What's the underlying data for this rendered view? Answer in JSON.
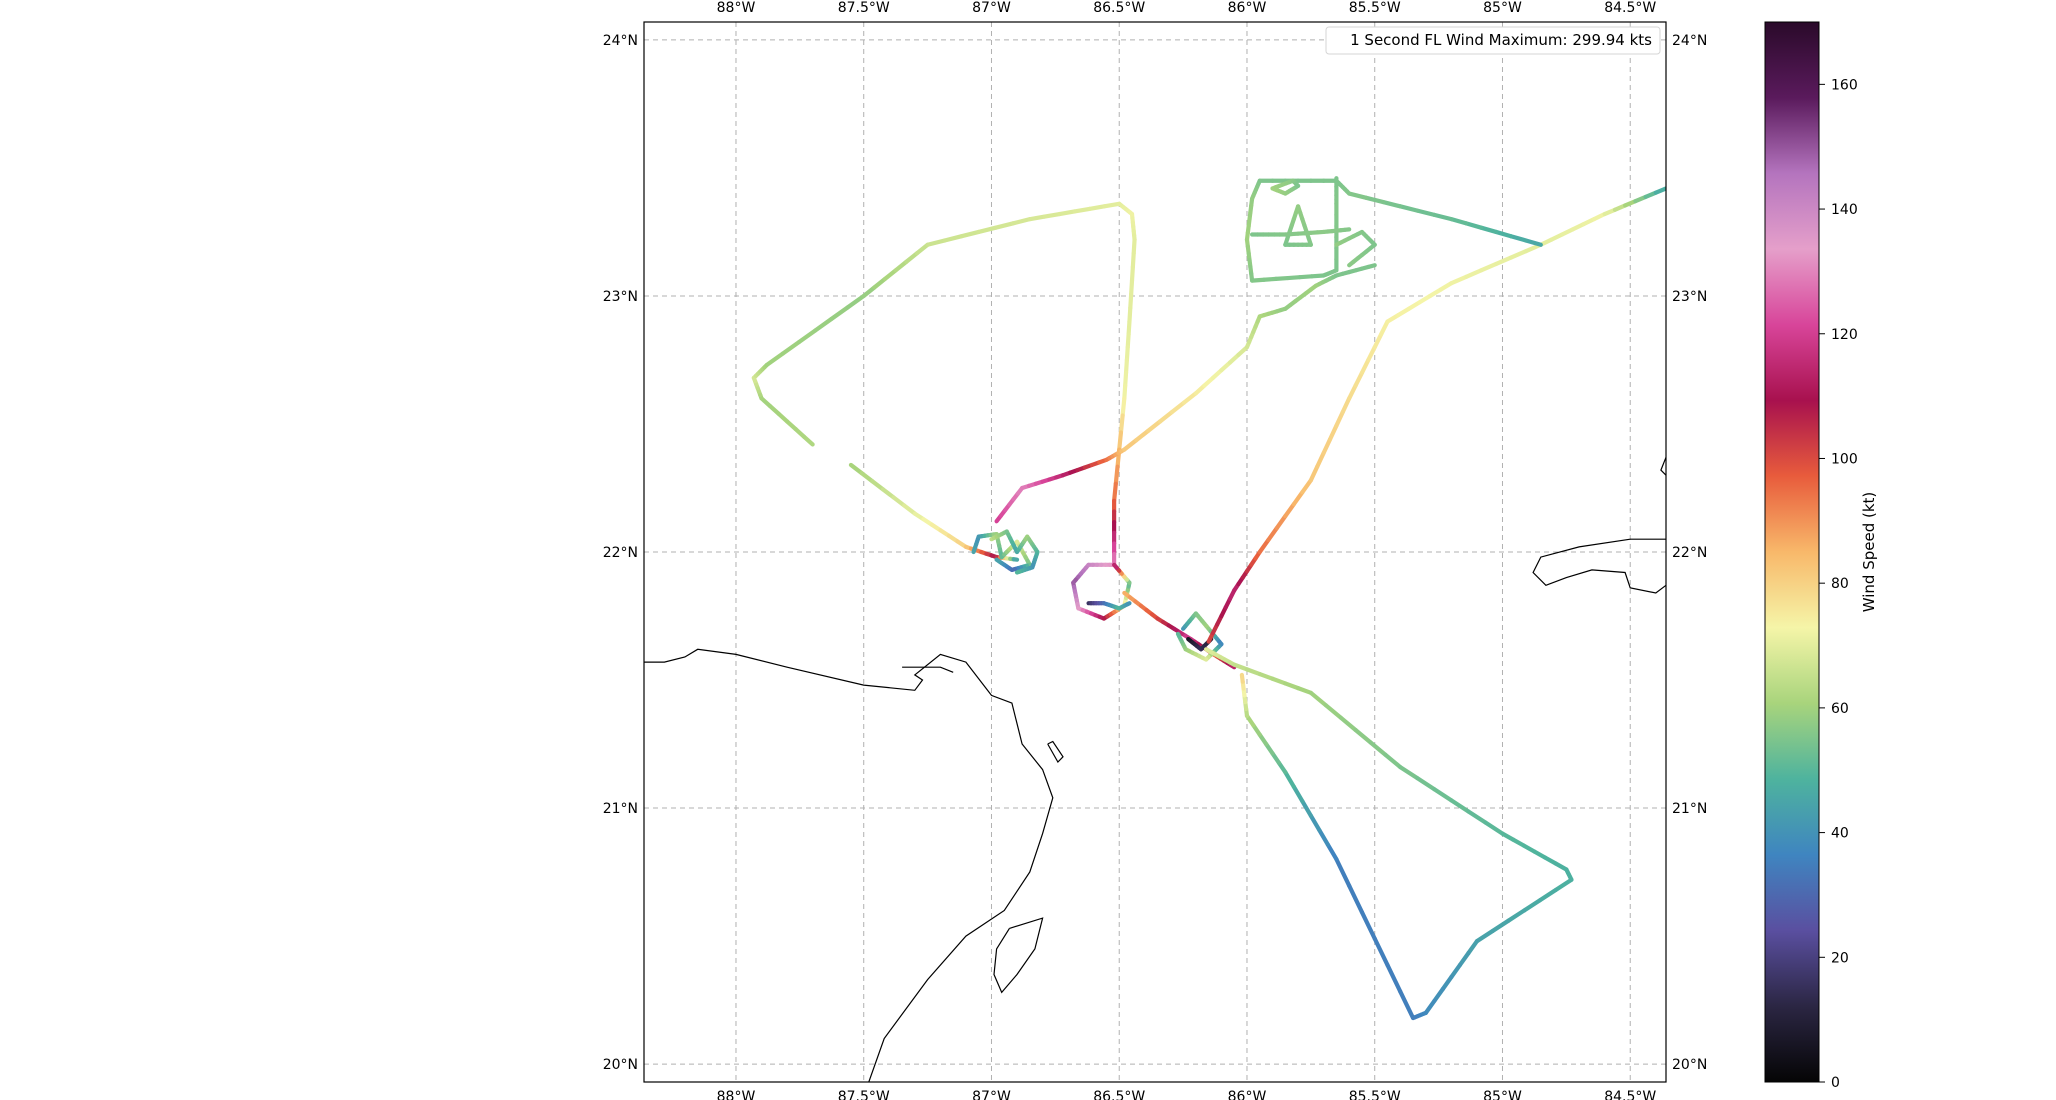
{
  "map": {
    "legend": "1 Second FL Wind Maximum: 299.94 kts",
    "lon_ticks": [
      "88°W",
      "87.5°W",
      "87°W",
      "86.5°W",
      "86°W",
      "85.5°W",
      "85°W",
      "84.5°W"
    ],
    "lat_ticks": [
      "24°N",
      "23°N",
      "22°N",
      "21°N",
      "20°N"
    ],
    "extent": {
      "lon": [
        -88.36,
        -84.36
      ],
      "lat": [
        19.93,
        24.07
      ]
    },
    "gridlines": true,
    "grid_lons": [
      -88,
      -87.5,
      -87,
      -86.5,
      -86,
      -85.5,
      -85,
      -84.5
    ],
    "grid_lats": [
      24,
      23,
      22,
      21,
      20
    ]
  },
  "colorbar": {
    "label": "Wind Speed (kt)",
    "range": [
      0,
      170
    ],
    "ticks": [
      "0",
      "20",
      "40",
      "60",
      "80",
      "100",
      "120",
      "140",
      "160"
    ],
    "tick_values": [
      0,
      20,
      40,
      60,
      80,
      100,
      120,
      140,
      160
    ],
    "colormap_stops": [
      "#050505",
      "#2b2643",
      "#5a4fa0",
      "#3f85c0",
      "#4eb39e",
      "#a8d47c",
      "#f5f5a8",
      "#f8b86a",
      "#e85c3c",
      "#a8114e",
      "#d8459a",
      "#e59fca",
      "#b474be",
      "#5a1a5c",
      "#2a0a2a"
    ]
  },
  "chart_data": {
    "type": "scatter",
    "title": "",
    "xlabel": "",
    "ylabel": "",
    "legend_placement": "top-right",
    "series": [
      {
        "segments": [
          {
            "path": [
              [
                -87.7,
                22.42
              ],
              [
                -87.9,
                22.6
              ],
              [
                -87.93,
                22.68
              ],
              [
                -87.88,
                22.73
              ],
              [
                -87.5,
                23.0
              ],
              [
                -87.25,
                23.2
              ],
              [
                -86.85,
                23.3
              ],
              [
                -86.5,
                23.36
              ],
              [
                -86.45,
                23.32
              ],
              [
                -86.44,
                23.22
              ],
              [
                -86.46,
                22.9
              ],
              [
                -86.48,
                22.6
              ],
              [
                -86.52,
                22.2
              ],
              [
                -86.52,
                21.95
              ]
            ],
            "speeds": [
              62,
              60,
              68,
              60,
              58,
              66,
              68,
              70,
              72,
              70,
              70,
              72,
              95,
              130
            ]
          },
          {
            "path": [
              [
                -86.52,
                21.95
              ],
              [
                -86.62,
                21.95
              ],
              [
                -86.68,
                21.88
              ],
              [
                -86.66,
                21.78
              ],
              [
                -86.56,
                21.74
              ],
              [
                -86.48,
                21.79
              ],
              [
                -86.46,
                21.88
              ],
              [
                -86.52,
                21.95
              ]
            ],
            "speeds": [
              130,
              140,
              150,
              135,
              110,
              80,
              50,
              120
            ]
          },
          {
            "path": [
              [
                -86.62,
                21.8
              ],
              [
                -86.56,
                21.8
              ],
              [
                -86.5,
                21.78
              ],
              [
                -86.46,
                21.8
              ]
            ],
            "speeds": [
              15,
              30,
              50,
              40
            ]
          },
          {
            "path": [
              [
                -87.55,
                22.34
              ],
              [
                -87.3,
                22.15
              ],
              [
                -87.1,
                22.02
              ],
              [
                -86.98,
                21.98
              ],
              [
                -86.9,
                21.97
              ]
            ],
            "speeds": [
              60,
              70,
              80,
              110,
              40
            ]
          },
          {
            "path": [
              [
                -87.07,
                22.0
              ],
              [
                -87.05,
                22.06
              ],
              [
                -86.98,
                22.07
              ],
              [
                -86.96,
                21.98
              ],
              [
                -86.9,
                22.04
              ],
              [
                -86.85,
                21.95
              ],
              [
                -86.92,
                21.93
              ],
              [
                -86.98,
                21.97
              ]
            ],
            "speeds": [
              45,
              40,
              60,
              50,
              70,
              55,
              30,
              45
            ]
          },
          {
            "path": [
              [
                -87.0,
                22.05
              ],
              [
                -86.94,
                22.08
              ],
              [
                -86.9,
                22.0
              ],
              [
                -86.86,
                22.06
              ],
              [
                -86.82,
                22.0
              ],
              [
                -86.84,
                21.94
              ],
              [
                -86.9,
                21.92
              ]
            ],
            "speeds": [
              65,
              55,
              45,
              60,
              50,
              40,
              50
            ]
          },
          {
            "path": [
              [
                -86.98,
                22.12
              ],
              [
                -86.88,
                22.25
              ],
              [
                -86.72,
                22.3
              ],
              [
                -86.55,
                22.36
              ],
              [
                -86.48,
                22.4
              ],
              [
                -86.2,
                22.62
              ],
              [
                -86.0,
                22.8
              ],
              [
                -85.95,
                22.92
              ],
              [
                -85.85,
                22.95
              ],
              [
                -85.73,
                23.04
              ],
              [
                -85.65,
                23.08
              ],
              [
                -85.5,
                23.12
              ]
            ],
            "speeds": [
              120,
              130,
              115,
              95,
              82,
              75,
              68,
              62,
              58,
              60,
              55,
              55
            ]
          },
          {
            "path": [
              [
                -86.48,
                21.84
              ],
              [
                -86.35,
                21.74
              ],
              [
                -86.22,
                21.66
              ],
              [
                -86.13,
                21.6
              ],
              [
                -86.05,
                21.55
              ]
            ],
            "speeds": [
              85,
              100,
              120,
              95,
              115
            ]
          },
          {
            "path": [
              [
                -86.25,
                21.7
              ],
              [
                -86.2,
                21.76
              ],
              [
                -86.15,
                21.7
              ],
              [
                -86.1,
                21.64
              ],
              [
                -86.16,
                21.58
              ],
              [
                -86.24,
                21.62
              ],
              [
                -86.27,
                21.68
              ]
            ],
            "speeds": [
              40,
              55,
              60,
              35,
              70,
              60,
              50
            ]
          },
          {
            "path": [
              [
                -86.23,
                21.66
              ],
              [
                -86.18,
                21.62
              ],
              [
                -86.14,
                21.66
              ]
            ],
            "speeds": [
              5,
              15,
              10
            ]
          },
          {
            "path": [
              [
                -86.16,
                21.62
              ],
              [
                -86.05,
                21.56
              ],
              [
                -85.75,
                21.45
              ],
              [
                -85.4,
                21.16
              ],
              [
                -85.0,
                20.9
              ],
              [
                -84.75,
                20.76
              ],
              [
                -84.73,
                20.72
              ],
              [
                -85.1,
                20.48
              ],
              [
                -85.3,
                20.2
              ],
              [
                -85.35,
                20.18
              ],
              [
                -85.65,
                20.8
              ],
              [
                -85.85,
                21.14
              ],
              [
                -86.0,
                21.36
              ],
              [
                -86.02,
                21.52
              ]
            ],
            "speeds": [
              70,
              65,
              60,
              55,
              50,
              48,
              48,
              44,
              38,
              35,
              35,
              50,
              62,
              80
            ]
          },
          {
            "path": [
              [
                -86.15,
                21.65
              ],
              [
                -86.05,
                21.85
              ],
              [
                -85.95,
                22.0
              ],
              [
                -85.75,
                22.28
              ],
              [
                -85.6,
                22.6
              ],
              [
                -85.45,
                22.9
              ],
              [
                -85.2,
                23.05
              ],
              [
                -84.85,
                23.2
              ],
              [
                -84.6,
                23.32
              ],
              [
                -84.36,
                23.42
              ]
            ],
            "speeds": [
              100,
              115,
              95,
              82,
              78,
              74,
              72,
              70,
              72,
              45
            ]
          },
          {
            "path": [
              [
                -84.85,
                23.2
              ],
              [
                -85.2,
                23.3
              ],
              [
                -85.6,
                23.4
              ],
              [
                -85.65,
                23.45
              ],
              [
                -85.95,
                23.45
              ],
              [
                -85.98,
                23.38
              ],
              [
                -86.0,
                23.22
              ],
              [
                -85.98,
                23.06
              ],
              [
                -85.7,
                23.08
              ],
              [
                -85.65,
                23.1
              ],
              [
                -85.65,
                23.36
              ],
              [
                -85.65,
                23.46
              ]
            ],
            "speeds": [
              45,
              52,
              56,
              55,
              55,
              58,
              60,
              56,
              55,
              55,
              56,
              55
            ]
          },
          {
            "path": [
              [
                -85.8,
                23.43
              ],
              [
                -85.85,
                23.4
              ],
              [
                -85.9,
                23.42
              ],
              [
                -85.82,
                23.45
              ],
              [
                -85.8,
                23.43
              ]
            ],
            "speeds": [
              55,
              58,
              60,
              57,
              55
            ]
          },
          {
            "path": [
              [
                -85.85,
                23.2
              ],
              [
                -85.8,
                23.35
              ],
              [
                -85.75,
                23.2
              ],
              [
                -85.85,
                23.2
              ]
            ],
            "speeds": [
              55,
              58,
              56,
              55
            ]
          },
          {
            "path": [
              [
                -85.65,
                23.2
              ],
              [
                -85.55,
                23.25
              ],
              [
                -85.5,
                23.2
              ],
              [
                -85.6,
                23.12
              ]
            ],
            "speeds": [
              58,
              56,
              55,
              57
            ]
          },
          {
            "path": [
              [
                -85.98,
                23.24
              ],
              [
                -85.85,
                23.24
              ],
              [
                -85.7,
                23.25
              ],
              [
                -85.6,
                23.26
              ]
            ],
            "speeds": [
              55,
              56,
              57,
              56
            ]
          }
        ]
      }
    ],
    "coastlines": [
      [
        [
          -88.36,
          21.57
        ],
        [
          -88.28,
          21.57
        ],
        [
          -88.2,
          21.59
        ],
        [
          -88.15,
          21.62
        ],
        [
          -88.0,
          21.6
        ],
        [
          -87.8,
          21.55
        ],
        [
          -87.5,
          21.48
        ],
        [
          -87.3,
          21.46
        ],
        [
          -87.27,
          21.5
        ],
        [
          -87.3,
          21.52
        ],
        [
          -87.2,
          21.6
        ],
        [
          -87.1,
          21.57
        ],
        [
          -87.0,
          21.44
        ],
        [
          -86.92,
          21.41
        ],
        [
          -86.88,
          21.25
        ],
        [
          -86.8,
          21.15
        ],
        [
          -86.76,
          21.04
        ],
        [
          -86.8,
          20.9
        ],
        [
          -86.85,
          20.75
        ],
        [
          -86.95,
          20.6
        ],
        [
          -87.1,
          20.5
        ],
        [
          -87.25,
          20.33
        ],
        [
          -87.42,
          20.1
        ],
        [
          -87.48,
          19.93
        ]
      ],
      [
        [
          -87.35,
          21.55
        ],
        [
          -87.2,
          21.55
        ],
        [
          -87.15,
          21.53
        ]
      ],
      [
        [
          -86.78,
          21.25
        ],
        [
          -86.74,
          21.18
        ],
        [
          -86.72,
          21.2
        ],
        [
          -86.76,
          21.26
        ],
        [
          -86.78,
          21.25
        ]
      ],
      [
        [
          -86.93,
          20.53
        ],
        [
          -86.98,
          20.45
        ],
        [
          -86.99,
          20.35
        ],
        [
          -86.96,
          20.28
        ],
        [
          -86.9,
          20.35
        ],
        [
          -86.83,
          20.45
        ],
        [
          -86.8,
          20.57
        ],
        [
          -86.93,
          20.53
        ]
      ],
      [
        [
          -84.36,
          22.37
        ],
        [
          -84.38,
          22.32
        ],
        [
          -84.36,
          22.3
        ]
      ],
      [
        [
          -84.36,
          22.05
        ],
        [
          -84.5,
          22.05
        ],
        [
          -84.7,
          22.02
        ],
        [
          -84.85,
          21.98
        ],
        [
          -84.88,
          21.92
        ],
        [
          -84.83,
          21.87
        ],
        [
          -84.75,
          21.9
        ],
        [
          -84.65,
          21.93
        ],
        [
          -84.52,
          21.92
        ],
        [
          -84.5,
          21.86
        ],
        [
          -84.4,
          21.84
        ],
        [
          -84.36,
          21.87
        ]
      ]
    ]
  }
}
